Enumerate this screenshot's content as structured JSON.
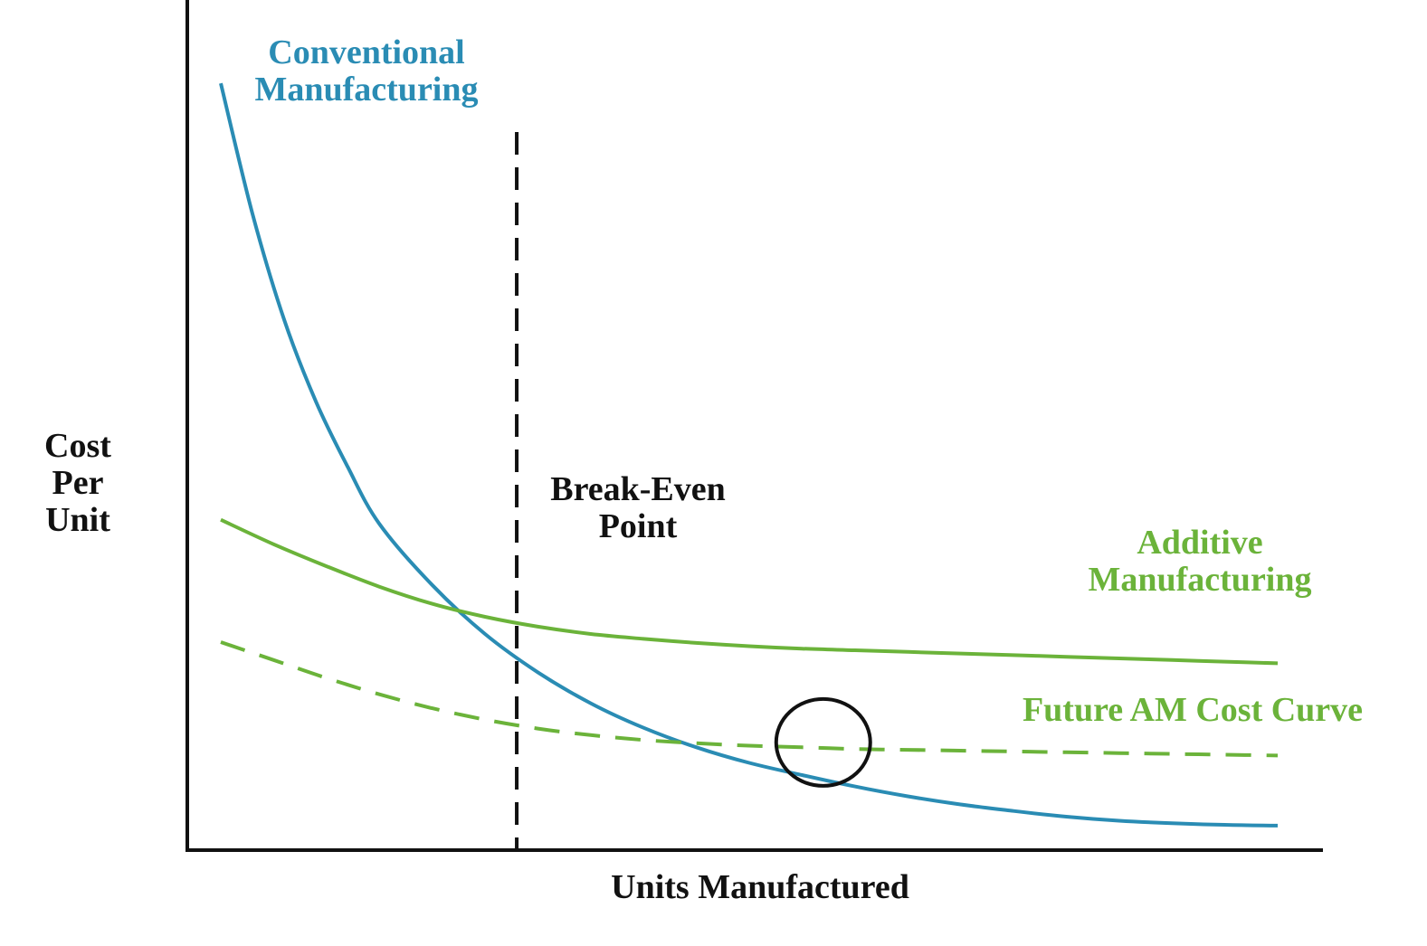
{
  "chart_data": {
    "type": "line",
    "title": "",
    "xlabel": "Units Manufactured",
    "ylabel": [
      "Cost",
      "Per",
      "Unit"
    ],
    "xlim": [
      0,
      100
    ],
    "ylim": [
      0,
      100
    ],
    "grid": false,
    "ticks": false,
    "series": [
      {
        "name": [
          "Conventional",
          "Manufacturing"
        ],
        "style": "solid",
        "color": "#2A8CB4",
        "x": [
          0,
          3,
          6,
          9,
          12,
          15,
          20,
          25,
          30,
          35,
          40,
          45,
          50,
          55,
          60,
          65,
          70,
          75,
          80,
          85,
          90,
          95,
          100
        ],
        "y": [
          94,
          78,
          65,
          55,
          47,
          40,
          32.5,
          26.5,
          21.8,
          18,
          15,
          12.6,
          10.7,
          9.2,
          7.8,
          6.6,
          5.6,
          4.8,
          4.1,
          3.6,
          3.3,
          3.1,
          3.0
        ]
      },
      {
        "name": [
          "Additive",
          "Manufacturing"
        ],
        "style": "solid",
        "color": "#6BB33A",
        "x": [
          0,
          5,
          10,
          15,
          20,
          25,
          30,
          35,
          40,
          45,
          50,
          55,
          60,
          65,
          70,
          75,
          80,
          85,
          90,
          95,
          100
        ],
        "y": [
          40.5,
          37.5,
          34.8,
          32.3,
          30.2,
          28.6,
          27.4,
          26.5,
          25.9,
          25.4,
          25.0,
          24.7,
          24.5,
          24.3,
          24.1,
          23.9,
          23.7,
          23.5,
          23.3,
          23.1,
          22.9
        ]
      },
      {
        "name": "Future AM Cost Curve",
        "style": "dashed",
        "color": "#6BB33A",
        "x": [
          0,
          5,
          10,
          15,
          20,
          25,
          30,
          35,
          40,
          45,
          50,
          55,
          60,
          65,
          70,
          75,
          80,
          85,
          90,
          95,
          100
        ],
        "y": [
          25.5,
          23.3,
          21.1,
          19.1,
          17.4,
          16.0,
          14.9,
          14.1,
          13.5,
          13.1,
          12.8,
          12.6,
          12.4,
          12.3,
          12.2,
          12.1,
          12.0,
          11.9,
          11.8,
          11.7,
          11.6
        ]
      }
    ],
    "annotations": [
      {
        "kind": "vertical-dashed-line",
        "text": [
          "Break-Even",
          "Point"
        ],
        "x": 28,
        "color": "#111111"
      },
      {
        "kind": "circle",
        "x": 57,
        "y": 13.2,
        "color": "#111111"
      }
    ]
  }
}
